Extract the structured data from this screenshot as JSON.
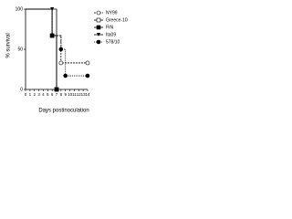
{
  "chart_data": {
    "type": "line",
    "step": true,
    "x_label": "Days postinoculation",
    "y_label": "% survival",
    "xlim": [
      0,
      14
    ],
    "xticks": [
      0,
      1,
      2,
      3,
      4,
      5,
      6,
      7,
      8,
      9,
      10,
      11,
      12,
      13,
      14
    ],
    "ylim": [
      0,
      100
    ],
    "yticks": [
      0,
      50,
      100
    ],
    "legend": "right",
    "series": [
      {
        "name": "NY99",
        "color": "#000000",
        "marker": "circle-open",
        "dash": "2,1",
        "x": [
          0,
          6,
          8,
          14
        ],
        "values": [
          100,
          67,
          33,
          33
        ]
      },
      {
        "name": "Greece-10",
        "color": "#000000",
        "marker": "square-open",
        "dash": "",
        "x": [
          0,
          6,
          7
        ],
        "values": [
          100,
          67,
          0
        ]
      },
      {
        "name": "FIN",
        "color": "#000000",
        "marker": "square",
        "dash": "",
        "x": [
          0,
          6,
          7
        ],
        "values": [
          100,
          67,
          0
        ]
      },
      {
        "name": "Ita09",
        "color": "#000000",
        "marker": "triangle-down",
        "dash": "",
        "x": [
          0,
          6,
          7
        ],
        "values": [
          100,
          100,
          0
        ]
      },
      {
        "name": "578/10",
        "color": "#000000",
        "marker": "circle",
        "dash": "1,1",
        "x": [
          0,
          6,
          8,
          9,
          14
        ],
        "values": [
          100,
          67,
          50,
          17,
          17
        ]
      }
    ]
  }
}
